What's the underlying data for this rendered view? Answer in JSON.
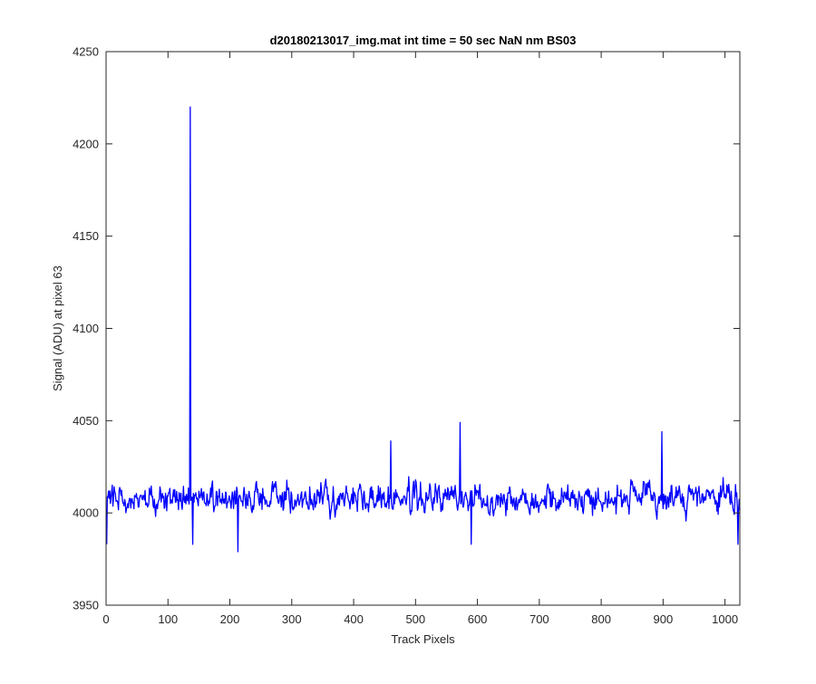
{
  "chart_data": {
    "type": "line",
    "title": "d20180213017_img.mat int time = 50 sec  NaN nm BS03",
    "xlabel": "Track Pixels",
    "ylabel": "Signal (ADU) at pixel 63",
    "xlim": [
      0,
      1024
    ],
    "ylim": [
      3950,
      4250
    ],
    "xticks": [
      0,
      100,
      200,
      300,
      400,
      500,
      600,
      700,
      800,
      900,
      1000
    ],
    "yticks": [
      3950,
      4000,
      4050,
      4100,
      4150,
      4200,
      4250
    ],
    "grid": false,
    "legend": "none",
    "series": [
      {
        "color": "#0000ff",
        "baseline": 4008,
        "noise_amplitude": 12,
        "x_start": 1,
        "x_end": 1024,
        "features": [
          {
            "x": 1,
            "y": 3983
          },
          {
            "x": 136,
            "y": 4220
          },
          {
            "x": 140,
            "y": 3983
          },
          {
            "x": 213,
            "y": 3979
          },
          {
            "x": 460,
            "y": 4039
          },
          {
            "x": 572,
            "y": 4049
          },
          {
            "x": 590,
            "y": 3983
          },
          {
            "x": 898,
            "y": 4044
          },
          {
            "x": 1021,
            "y": 3983
          }
        ]
      }
    ]
  }
}
